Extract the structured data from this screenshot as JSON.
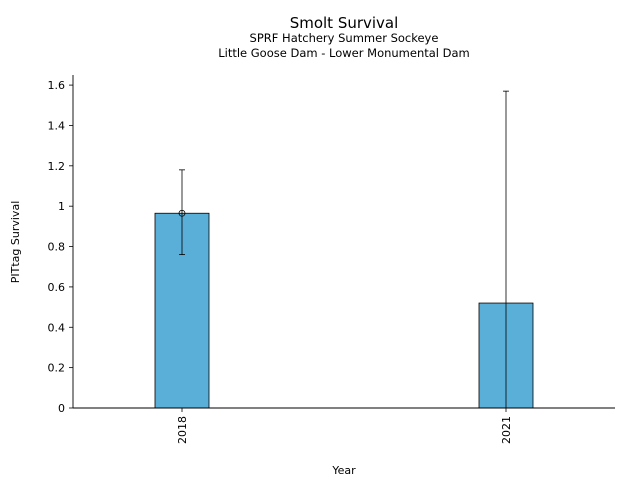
{
  "chart_data": {
    "type": "bar",
    "title": "Smolt Survival",
    "subtitle_lines": [
      "SPRF Hatchery Summer Sockeye",
      "Little Goose Dam - Lower Monumental Dam"
    ],
    "xlabel": "Year",
    "ylabel": "PITtag Survival",
    "categories": [
      "2018",
      "2021"
    ],
    "values": [
      0.965,
      0.52
    ],
    "error_low": [
      0.76,
      0.0
    ],
    "error_high": [
      1.18,
      1.57
    ],
    "point_marker": [
      0.965,
      null
    ],
    "ylim": [
      0,
      1.65
    ],
    "yticks": [
      0,
      0.2,
      0.4,
      0.6,
      0.8,
      1,
      1.2,
      1.4,
      1.6
    ],
    "ytick_labels": [
      "0",
      "0.2",
      "0.4",
      "0.6",
      "0.8",
      "1",
      "1.2",
      "1.4",
      "1.6"
    ],
    "grid": false,
    "bar_color": "#5aafd8",
    "edge_color": "#000000"
  }
}
